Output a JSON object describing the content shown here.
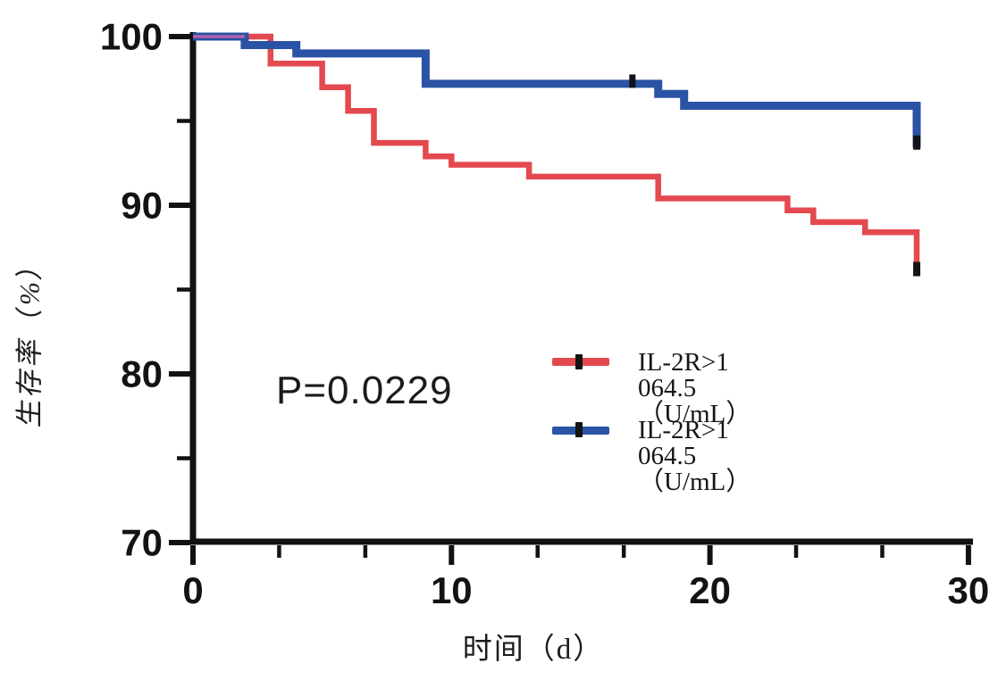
{
  "figure": {
    "background": "#ffffff",
    "axis_color": "#111111",
    "p_value_label": "P=0.0229",
    "x_axis": {
      "title": "时间（d）",
      "range": [
        0,
        30
      ],
      "ticks": [
        0,
        10,
        20,
        30
      ],
      "minor_ticks": [
        3.333,
        6.667,
        13.333,
        16.667,
        23.333,
        26.667
      ]
    },
    "y_axis": {
      "title": "生存率（%）",
      "range": [
        70,
        100
      ],
      "ticks": [
        100,
        90,
        80,
        70
      ],
      "minor_ticks": [
        95,
        85,
        75
      ]
    },
    "legend": {
      "items": [
        {
          "label": "IL-2R>1 064.5（U/mL）",
          "color": "#e4494f",
          "marker": "censor-tick"
        },
        {
          "label": "IL-2R>1 064.5（U/mL）",
          "color": "#2a52a5",
          "marker": "censor-tick"
        }
      ]
    }
  },
  "chart_data": {
    "type": "line",
    "subtype": "kaplan-meier-step-survival",
    "title": "",
    "xlabel": "时间（d）",
    "ylabel": "生存率（%）",
    "xlim": [
      0,
      30
    ],
    "ylim": [
      70,
      100
    ],
    "grid": false,
    "legend_position": "right-middle",
    "p_value": "P=0.0229",
    "series": [
      {
        "name": "IL-2R>1 064.5（U/mL）",
        "color": "#e4494f",
        "step": true,
        "points": [
          [
            0,
            100
          ],
          [
            3,
            98.4
          ],
          [
            5,
            97.0
          ],
          [
            6,
            95.6
          ],
          [
            7,
            93.7
          ],
          [
            9,
            92.9
          ],
          [
            10,
            92.4
          ],
          [
            13,
            91.7
          ],
          [
            18,
            90.4
          ],
          [
            23,
            89.7
          ],
          [
            24,
            89.0
          ],
          [
            26,
            88.4
          ],
          [
            28,
            85.9
          ]
        ],
        "censor_marks": [
          [
            28,
            85.9
          ]
        ]
      },
      {
        "name": "IL-2R>1 064.5（U/mL）",
        "color": "#2a52a5",
        "step": true,
        "points": [
          [
            0,
            100
          ],
          [
            2,
            99.5
          ],
          [
            4,
            99.0
          ],
          [
            9,
            97.2
          ],
          [
            18,
            96.6
          ],
          [
            19,
            95.9
          ],
          [
            28,
            93.4
          ]
        ],
        "censor_marks": [
          [
            17,
            97.2
          ],
          [
            28,
            93.4
          ]
        ]
      },
      {
        "name": "curves-overlap-segment",
        "color": "#b263ab",
        "step": true,
        "points": [
          [
            0,
            100
          ],
          [
            2,
            100
          ]
        ],
        "censor_marks": []
      }
    ]
  }
}
